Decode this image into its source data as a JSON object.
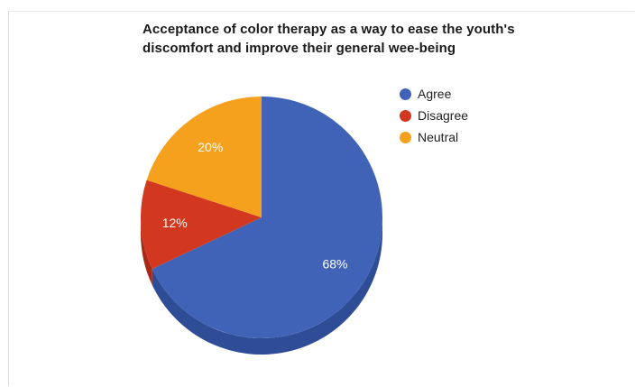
{
  "chart_data": {
    "type": "pie",
    "title_lines": [
      "Acceptance of color therapy as a way to ease the youth's",
      "discomfort and improve their general wee-being"
    ],
    "slices": [
      {
        "label": "Agree",
        "value": 68,
        "display": "68%",
        "color": "#4062b7",
        "side_color": "#2f4d96"
      },
      {
        "label": "Disagree",
        "value": 12,
        "display": "12%",
        "color": "#d2381f",
        "side_color": "#a82a16"
      },
      {
        "label": "Neutral",
        "value": 20,
        "display": "20%",
        "color": "#f6a11d",
        "side_color": "#c98012"
      }
    ],
    "legend_position": "top-right",
    "three_d": true
  }
}
